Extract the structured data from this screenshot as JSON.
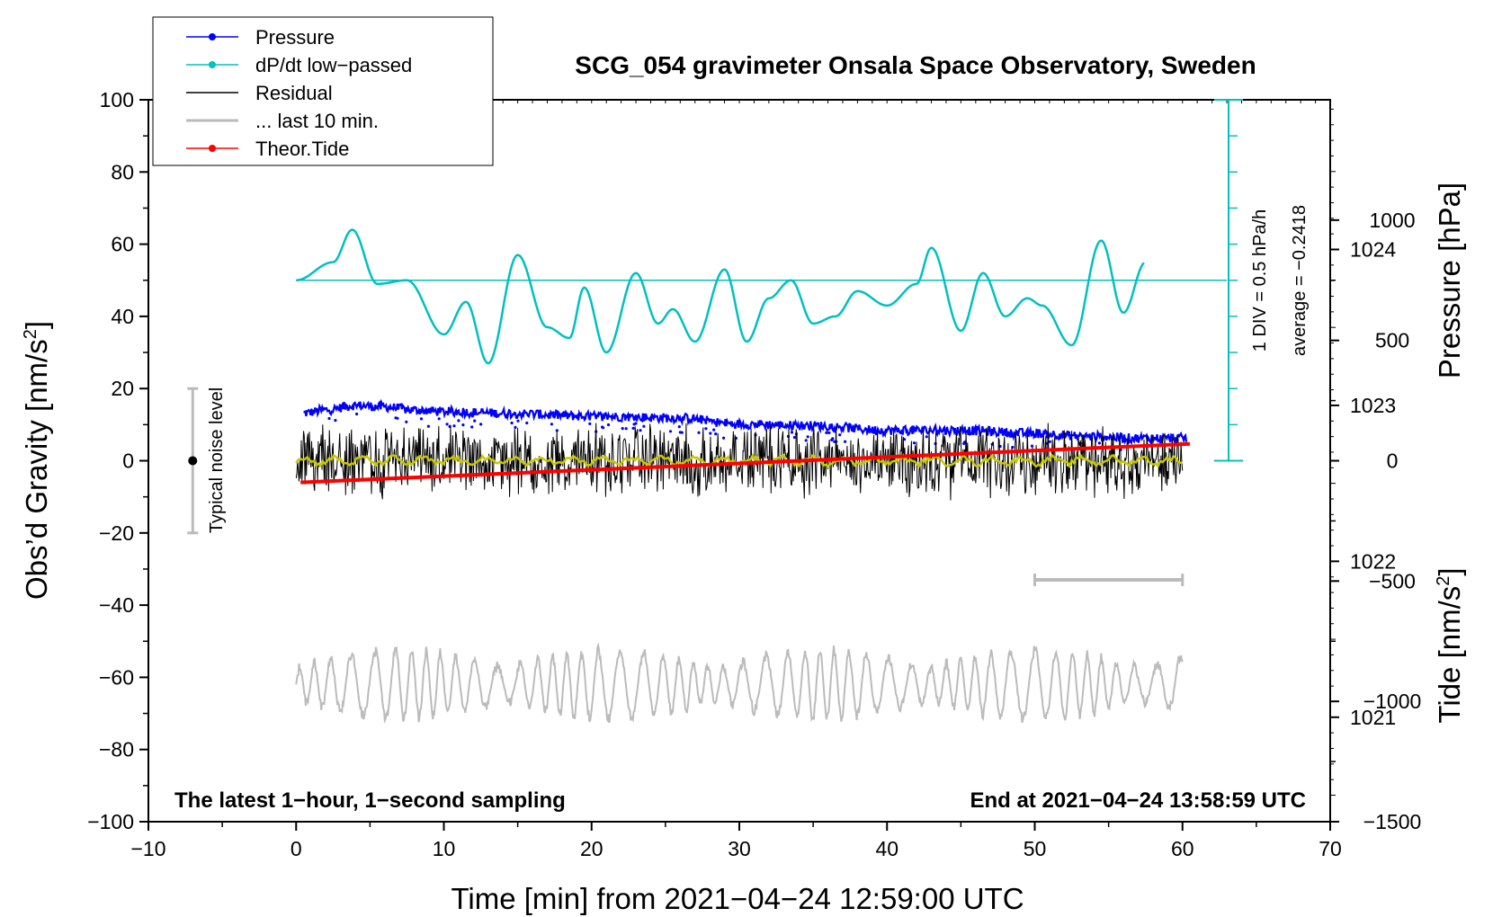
{
  "chart_data": {
    "type": "line",
    "title": "SCG_054 gravimeter Onsala Space Observatory, Sweden",
    "xlabel": "Time [min] from 2021−04−24 12:59:00 UTC",
    "ylabel_left": "Obs’d Gravity [nm/s",
    "ylabel_left_sup": "2",
    "ylabel_left_end": "]",
    "ylabel_pressure": "Pressure [hPa]",
    "ylabel_tide": "Tide [nm/s",
    "ylabel_tide_sup": "2",
    "ylabel_tide_end": "]",
    "xlim": [
      -10,
      70
    ],
    "ylim_left": [
      -100,
      100
    ],
    "pressure_lim": [
      1020.33,
      1024.96
    ],
    "tide_lim": [
      -1500,
      1500
    ],
    "x_ticks": [
      -10,
      0,
      10,
      20,
      30,
      40,
      50,
      60,
      70
    ],
    "x_tick_labels": [
      "−10",
      "0",
      "10",
      "20",
      "30",
      "40",
      "50",
      "60",
      "70"
    ],
    "y_ticks": [
      -100,
      -80,
      -60,
      -40,
      -20,
      0,
      20,
      40,
      60,
      80,
      100
    ],
    "y_tick_labels": [
      "−100",
      "−80",
      "−60",
      "−40",
      "−20",
      "0",
      "20",
      "40",
      "60",
      "80",
      "100"
    ],
    "pressure_ticks": [
      1021,
      1022,
      1023,
      1024
    ],
    "pressure_tick_labels": [
      "1021",
      "1022",
      "1023",
      "1024"
    ],
    "tide_ticks": [
      -1500,
      -1000,
      -500,
      0,
      500,
      1000
    ],
    "tide_tick_labels": [
      "−1500",
      "−1000",
      "−500",
      "0",
      "500",
      "1000"
    ],
    "legend_position": "top-left",
    "legend": [
      {
        "label": "Pressure",
        "color": "#0000ff",
        "marker": true
      },
      {
        "label": "dP/dt low−passed",
        "color": "#00c0c0",
        "marker": true
      },
      {
        "label": "Residual",
        "color": "#000000",
        "marker": false
      },
      {
        "label": "... last 10 min.",
        "color": "#bbbbbb",
        "marker": false
      },
      {
        "label": "Theor.Tide",
        "color": "#ff0000",
        "marker": true
      }
    ],
    "series": [
      {
        "name": "Pressure",
        "axis": "pressure_hPa",
        "color": "#0000ff",
        "x": [
          0.5,
          2,
          4,
          6,
          8,
          10,
          14,
          20,
          26,
          30,
          35,
          40,
          45,
          50,
          54,
          57,
          60
        ],
        "values": [
          1022.95,
          1022.97,
          1023.0,
          1022.99,
          1022.97,
          1022.96,
          1022.95,
          1022.93,
          1022.92,
          1022.88,
          1022.87,
          1022.84,
          1022.84,
          1022.82,
          1022.8,
          1022.79,
          1022.79
        ]
      },
      {
        "name": "dP/dt low−passed",
        "axis": "left_nm_s2",
        "baseline": 50,
        "color": "#00c0c0",
        "x": [
          0,
          2.5,
          3.8,
          5.5,
          7.5,
          10,
          11.5,
          13,
          15,
          17,
          18.5,
          19.5,
          21,
          23,
          24.5,
          25.5,
          27,
          29,
          30.5,
          32,
          33.5,
          35,
          36.5,
          38,
          40,
          42,
          43,
          45,
          46.5,
          48,
          49.5,
          50.5,
          52.5,
          54.5,
          56,
          57.5
        ],
        "values": [
          50,
          55,
          64,
          49,
          50,
          35,
          44,
          27,
          57,
          37,
          34,
          48,
          30,
          52,
          38,
          42,
          33,
          53,
          33,
          45,
          50,
          38,
          40,
          47,
          43,
          49,
          59,
          36,
          52,
          40,
          45,
          43,
          32,
          61,
          41,
          55
        ]
      },
      {
        "name": "Residual",
        "axis": "left_nm_s2",
        "color": "#000000",
        "x_range": [
          0,
          60
        ],
        "noise_range": [
          -12,
          12
        ],
        "mean": 0
      },
      {
        "name": "Residual smoothed",
        "axis": "left_nm_s2",
        "color": "#c8c800",
        "x_range": [
          0,
          60
        ],
        "noise_range": [
          -2,
          2
        ],
        "mean": 0
      },
      {
        "name": "... last 10 min.",
        "axis": "left_nm_s2",
        "color": "#bbbbbb",
        "x_range": [
          0,
          60
        ],
        "mean": -62,
        "noise_range": [
          -73,
          -50
        ]
      },
      {
        "name": "Theor.Tide",
        "axis": "tide_nm_s2",
        "color": "#ff0000",
        "x": [
          0.3,
          60.5
        ],
        "values": [
          -90,
          70
        ]
      }
    ],
    "annotations": {
      "noise_label": "Typical noise level",
      "noise_bar": {
        "x": -7,
        "y_range": [
          -20,
          20
        ]
      },
      "div_label": "1 DIV = 0.5 hPa/h",
      "average_label": "average = −0.2418",
      "ten_min_bar": {
        "x_range": [
          50,
          60
        ],
        "y": -33
      },
      "bottom_left": "The latest 1−hour, 1−second sampling",
      "bottom_right": "End at 2021−04−24 13:58:59 UTC"
    }
  }
}
